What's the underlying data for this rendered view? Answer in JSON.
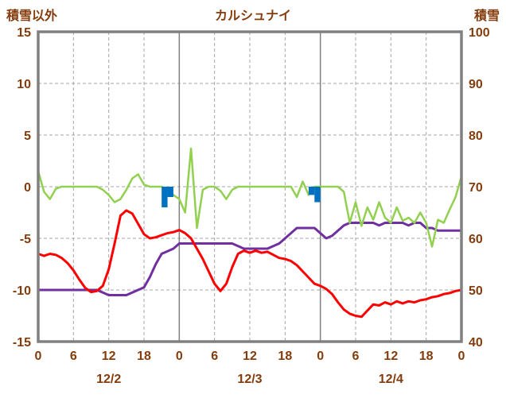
{
  "header": {
    "left_axis_title": "積雪以外",
    "chart_title": "カルシュナイ",
    "right_axis_title": "積雪"
  },
  "chart_data": {
    "type": "line",
    "title": "カルシュナイ",
    "x_unit": "hour",
    "x_range": [
      0,
      72
    ],
    "x_tick_hours": [
      0,
      6,
      12,
      18,
      24,
      30,
      36,
      42,
      48,
      54,
      60,
      66,
      72
    ],
    "x_tick_labels": [
      "0",
      "6",
      "12",
      "18",
      "0",
      "6",
      "12",
      "18",
      "0",
      "6",
      "12",
      "18",
      "0"
    ],
    "date_labels": [
      {
        "label": "12/2",
        "center_hour": 12
      },
      {
        "label": "12/3",
        "center_hour": 36
      },
      {
        "label": "12/4",
        "center_hour": 60
      }
    ],
    "left_axis": {
      "title": "積雪以外",
      "min": -15,
      "max": 15,
      "ticks": [
        15,
        10,
        5,
        0,
        -5,
        -10,
        -15
      ]
    },
    "right_axis": {
      "title": "積雪",
      "min": 40,
      "max": 100,
      "ticks": [
        100,
        90,
        80,
        70,
        60,
        50,
        40
      ]
    },
    "grid": {
      "h_lines": [
        10,
        5,
        0,
        -5,
        -10
      ],
      "v_dashed_hours": [
        6,
        12,
        18,
        30,
        36,
        42,
        54,
        60,
        66
      ],
      "v_solid_hours": [
        24,
        48
      ]
    },
    "colors": {
      "text": "#843c0c",
      "frame": "#808080",
      "grid": "#a6a6a6",
      "day_line": "#808080"
    },
    "series": [
      {
        "name": "purple-line",
        "color": "#7030a0",
        "axis": "right",
        "width": 3,
        "values": [
          50,
          50,
          50,
          50,
          50,
          50,
          50,
          50,
          50,
          50,
          50,
          49.5,
          49,
          49,
          49,
          49,
          49.5,
          50,
          50.5,
          52.5,
          55,
          57,
          57.5,
          58,
          59,
          59,
          59,
          59,
          59,
          59,
          59,
          59,
          59,
          59,
          58.5,
          58,
          58,
          58,
          58,
          58,
          58.5,
          59,
          60,
          61,
          62,
          62,
          62,
          62,
          61,
          60,
          60.5,
          61.5,
          62.5,
          63,
          63,
          63,
          63,
          63,
          62.5,
          63,
          63,
          63,
          63,
          62.5,
          63,
          63,
          62,
          62,
          61.5,
          61.5,
          61.5,
          61.5,
          61.5
        ]
      },
      {
        "name": "green-line",
        "color": "#92d050",
        "axis": "left",
        "width": 2.5,
        "values": [
          1.5,
          -0.5,
          -1.2,
          -0.2,
          0,
          0,
          0,
          0,
          0,
          0,
          0,
          -0.3,
          -0.8,
          -1.5,
          -1.2,
          -0.3,
          0.8,
          1.2,
          0.2,
          0,
          0,
          0,
          -0.3,
          -0.8,
          -1.2,
          -2.5,
          3.7,
          -4.0,
          -0.3,
          0,
          0,
          -0.4,
          -1.2,
          -0.3,
          0,
          0,
          0,
          0,
          0,
          0,
          0,
          0,
          0,
          0,
          -1.0,
          0.5,
          -0.8,
          0,
          0,
          0,
          0,
          0,
          -0.5,
          -3.5,
          -1.5,
          -3.8,
          -2.0,
          -3.2,
          -1.5,
          -3.0,
          -3.5,
          -2.0,
          -3.3,
          -3.0,
          -3.5,
          -2.5,
          -3.5,
          -5.8,
          -3.2,
          -3.5,
          -2.2,
          -1.0,
          1.0
        ]
      },
      {
        "name": "red-line",
        "color": "#ff0000",
        "axis": "left",
        "width": 3,
        "values": [
          -6.5,
          -6.7,
          -6.5,
          -6.6,
          -6.9,
          -7.4,
          -8.1,
          -9.0,
          -9.8,
          -10.2,
          -10.1,
          -9.6,
          -8.0,
          -5.5,
          -2.8,
          -2.3,
          -2.6,
          -3.6,
          -4.6,
          -5.0,
          -4.9,
          -4.7,
          -4.5,
          -4.4,
          -4.2,
          -4.5,
          -5.0,
          -6.0,
          -7.0,
          -8.2,
          -9.4,
          -10.1,
          -9.4,
          -7.8,
          -6.5,
          -6.2,
          -6.4,
          -6.2,
          -6.4,
          -6.3,
          -6.6,
          -6.9,
          -7.0,
          -7.2,
          -7.6,
          -8.2,
          -8.8,
          -9.4,
          -9.6,
          -9.9,
          -10.4,
          -11.2,
          -11.9,
          -12.3,
          -12.5,
          -12.6,
          -12.0,
          -11.4,
          -11.5,
          -11.2,
          -11.4,
          -11.1,
          -11.3,
          -11.1,
          -11.2,
          -11.0,
          -10.9,
          -10.7,
          -10.6,
          -10.4,
          -10.3,
          -10.1,
          -10.0
        ]
      },
      {
        "name": "blue-bars",
        "type": "bar",
        "color": "#0070c0",
        "axis": "left",
        "bars": [
          {
            "hour": 21,
            "depth": 2.0
          },
          {
            "hour": 22,
            "depth": 1.0
          },
          {
            "hour": 46,
            "depth": 0.8
          },
          {
            "hour": 47,
            "depth": 1.5
          }
        ]
      }
    ]
  }
}
